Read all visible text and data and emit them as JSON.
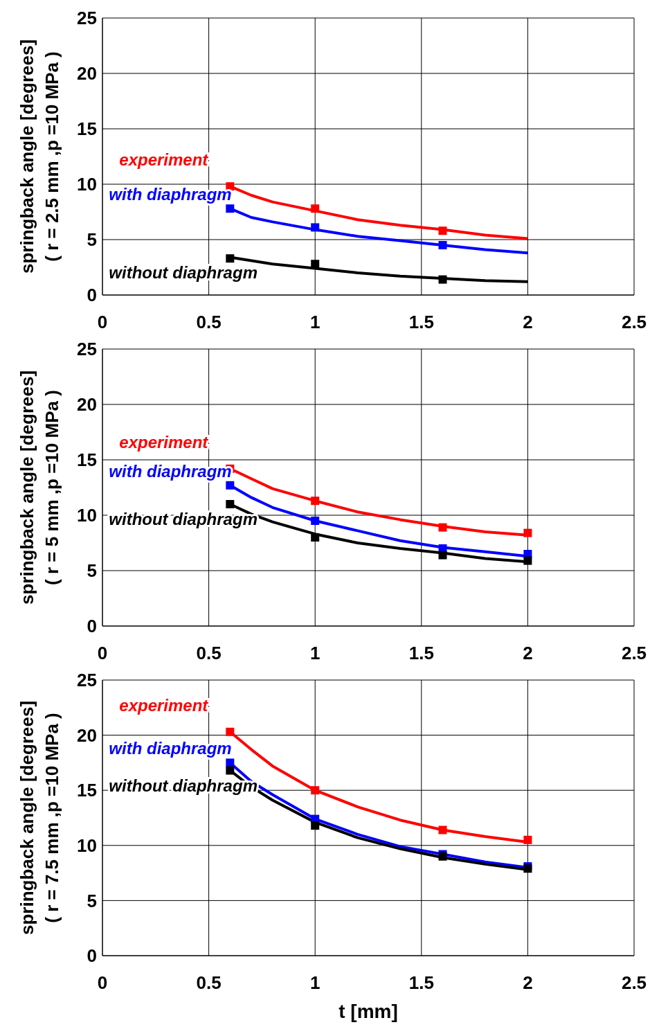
{
  "chart_data": [
    {
      "type": "line",
      "ylabel": "springback angle [degrees]\n( r = 2.5 mm ,p =10 MPa )",
      "xlim": [
        0,
        2.5
      ],
      "xticks": [
        0,
        0.5,
        1,
        1.5,
        2,
        2.5
      ],
      "ylim": [
        0,
        25
      ],
      "yticks": [
        0,
        5,
        10,
        15,
        20,
        25
      ],
      "grid": true,
      "marker": "none",
      "series": [
        {
          "name": "experiment",
          "color": "#ff0000",
          "x": [
            0.6,
            0.7,
            0.8,
            1,
            1.2,
            1.4,
            1.6,
            1.8,
            2
          ],
          "values": [
            9.8,
            9.0,
            8.4,
            7.6,
            6.8,
            6.3,
            5.9,
            5.4,
            5.1
          ]
        },
        {
          "name": "with diaphragm",
          "color": "#0000ff",
          "x": [
            0.6,
            0.7,
            0.8,
            1,
            1.2,
            1.4,
            1.6,
            1.8,
            2
          ],
          "values": [
            7.8,
            7.0,
            6.6,
            5.9,
            5.3,
            4.9,
            4.5,
            4.1,
            3.8
          ]
        },
        {
          "name": "without diaphragm",
          "color": "#000000",
          "x": [
            0.6,
            0.8,
            1,
            1.2,
            1.4,
            1.6,
            1.8,
            2
          ],
          "values": [
            3.4,
            2.8,
            2.4,
            2.0,
            1.7,
            1.5,
            1.3,
            1.2
          ]
        },
        {
          "type": "scatter",
          "marker": "square",
          "color": "#ff0000",
          "x": [
            0.6,
            1,
            1.6
          ],
          "values": [
            9.8,
            7.8,
            5.8
          ]
        },
        {
          "type": "scatter",
          "marker": "square",
          "color": "#0000ff",
          "x": [
            0.6,
            1,
            1.6
          ],
          "values": [
            7.8,
            6.1,
            4.5
          ]
        },
        {
          "type": "scatter",
          "marker": "square",
          "color": "#000000",
          "x": [
            0.6,
            1,
            1.6
          ],
          "values": [
            3.3,
            2.8,
            1.4
          ]
        }
      ]
    },
    {
      "type": "line",
      "ylabel": "springback angle [degrees]\n( r = 5 mm ,p =10 MPa )",
      "xlim": [
        0,
        2.5
      ],
      "xticks": [
        0,
        0.5,
        1,
        1.5,
        2,
        2.5
      ],
      "ylim": [
        0,
        25
      ],
      "yticks": [
        0,
        5,
        10,
        15,
        20,
        25
      ],
      "grid": true,
      "marker": "none",
      "series": [
        {
          "name": "experiment",
          "color": "#ff0000",
          "x": [
            0.6,
            0.7,
            0.8,
            1,
            1.2,
            1.4,
            1.6,
            1.8,
            2
          ],
          "values": [
            14.2,
            13.3,
            12.4,
            11.3,
            10.3,
            9.6,
            9.0,
            8.5,
            8.2
          ]
        },
        {
          "name": "with diaphragm",
          "color": "#0000ff",
          "x": [
            0.6,
            0.7,
            0.8,
            1,
            1.2,
            1.4,
            1.6,
            1.8,
            2
          ],
          "values": [
            12.7,
            11.6,
            10.7,
            9.5,
            8.6,
            7.7,
            7.1,
            6.7,
            6.3
          ]
        },
        {
          "name": "without diaphragm",
          "color": "#000000",
          "x": [
            0.6,
            0.7,
            0.8,
            1,
            1.2,
            1.4,
            1.6,
            1.8,
            2
          ],
          "values": [
            11.0,
            10.1,
            9.4,
            8.3,
            7.5,
            7.0,
            6.6,
            6.1,
            5.8
          ]
        },
        {
          "type": "scatter",
          "marker": "square",
          "color": "#ff0000",
          "x": [
            0.6,
            1,
            1.6,
            2
          ],
          "values": [
            14.2,
            11.3,
            8.9,
            8.4
          ]
        },
        {
          "type": "scatter",
          "marker": "square",
          "color": "#0000ff",
          "x": [
            0.6,
            1,
            1.6,
            2
          ],
          "values": [
            12.7,
            9.5,
            7.0,
            6.5
          ]
        },
        {
          "type": "scatter",
          "marker": "square",
          "color": "#000000",
          "x": [
            0.6,
            1,
            1.6,
            2
          ],
          "values": [
            11.0,
            8.0,
            6.4,
            5.9
          ]
        }
      ]
    },
    {
      "type": "line",
      "xlabel": "t   [mm]",
      "ylabel": "springback angle [degrees]\n( r = 7.5 mm ,p =10 MPa )",
      "xlim": [
        0,
        2.5
      ],
      "xticks": [
        0,
        0.5,
        1,
        1.5,
        2,
        2.5
      ],
      "ylim": [
        0,
        25
      ],
      "yticks": [
        0,
        5,
        10,
        15,
        20,
        25
      ],
      "grid": true,
      "marker": "none",
      "series": [
        {
          "name": "experiment",
          "color": "#ff0000",
          "x": [
            0.6,
            0.7,
            0.8,
            1,
            1.2,
            1.4,
            1.6,
            1.8,
            2
          ],
          "values": [
            20.3,
            18.7,
            17.2,
            15.0,
            13.5,
            12.3,
            11.4,
            10.8,
            10.3
          ]
        },
        {
          "name": "with diaphragm",
          "color": "#0000ff",
          "x": [
            0.6,
            0.7,
            0.8,
            1,
            1.2,
            1.4,
            1.6,
            1.8,
            2
          ],
          "values": [
            17.5,
            15.8,
            14.6,
            12.4,
            11.0,
            9.9,
            9.2,
            8.5,
            8.0
          ]
        },
        {
          "name": "without diaphragm",
          "color": "#000000",
          "x": [
            0.6,
            0.7,
            0.8,
            1,
            1.2,
            1.4,
            1.6,
            1.8,
            2
          ],
          "values": [
            16.8,
            15.3,
            14.1,
            12.1,
            10.7,
            9.7,
            8.9,
            8.3,
            7.8
          ]
        },
        {
          "type": "scatter",
          "marker": "square",
          "color": "#ff0000",
          "x": [
            0.6,
            1,
            1.6,
            2
          ],
          "values": [
            20.3,
            15.0,
            11.4,
            10.5
          ]
        },
        {
          "type": "scatter",
          "marker": "square",
          "color": "#0000ff",
          "x": [
            0.6,
            1,
            1.6,
            2
          ],
          "values": [
            17.5,
            12.4,
            9.2,
            8.1
          ]
        },
        {
          "type": "scatter",
          "marker": "square",
          "color": "#000000",
          "x": [
            0.6,
            1,
            1.6,
            2
          ],
          "values": [
            16.8,
            11.8,
            9.0,
            7.9
          ]
        }
      ]
    }
  ]
}
